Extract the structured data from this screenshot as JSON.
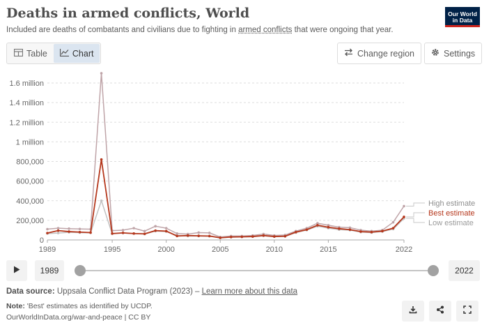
{
  "header": {
    "title": "Deaths in armed conflicts, World",
    "subtitle_before": "Included are deaths of combatants and civilians due to fighting in ",
    "subtitle_link": "armed conflicts",
    "subtitle_after": " that were ongoing that year.",
    "logo_line1": "Our World",
    "logo_line2": "in Data"
  },
  "toolbar": {
    "table_label": "Table",
    "chart_label": "Chart",
    "change_region_label": "Change region",
    "settings_label": "Settings"
  },
  "timeline": {
    "start_year": "1989",
    "end_year": "2022"
  },
  "footer": {
    "source_label": "Data source:",
    "source_text": " Uppsala Conflict Data Program (2023) – ",
    "source_link": "Learn more about this data",
    "note_label": "Note:",
    "note_text": " 'Best' estimates as identified by UCDP.",
    "url_text": "OurWorldInData.org/war-and-peace | CC BY"
  },
  "colors": {
    "high": "#bfa4a8",
    "best": "#b5371c",
    "low": "#c2c2c2",
    "grid": "#dddddd",
    "accent": "#002147"
  },
  "icons": [
    "table-icon",
    "chart-icon",
    "swap-arrows-icon",
    "gear-icon",
    "play-icon",
    "download-icon",
    "share-icon",
    "fullscreen-icon"
  ],
  "chart_data": {
    "type": "line",
    "title": "Deaths in armed conflicts, World",
    "x": [
      1989,
      1990,
      1991,
      1992,
      1993,
      1994,
      1995,
      1996,
      1997,
      1998,
      1999,
      2000,
      2001,
      2002,
      2003,
      2004,
      2005,
      2006,
      2007,
      2008,
      2009,
      2010,
      2011,
      2012,
      2013,
      2014,
      2015,
      2016,
      2017,
      2018,
      2019,
      2020,
      2021,
      2022
    ],
    "xticks": [
      "1989",
      "1995",
      "2000",
      "2005",
      "2010",
      "2015",
      "2022"
    ],
    "ylim": [
      0,
      1700000
    ],
    "yticks": [
      0,
      200000,
      400000,
      600000,
      800000,
      1000000,
      1200000,
      1400000,
      1600000
    ],
    "ytick_labels": [
      "0",
      "200,000",
      "400,000",
      "600,000",
      "800,000",
      "1 million",
      "1.2 million",
      "1.4 million",
      "1.6 million"
    ],
    "grid": true,
    "legend": "right-end-labels",
    "series": [
      {
        "name": "High estimate",
        "color": "#bfa4a8",
        "values": [
          110000,
          120000,
          115000,
          112000,
          110000,
          1700000,
          95000,
          100000,
          120000,
          90000,
          140000,
          120000,
          65000,
          60000,
          75000,
          72000,
          30000,
          40000,
          40000,
          45000,
          60000,
          45000,
          50000,
          90000,
          120000,
          170000,
          150000,
          130000,
          125000,
          100000,
          90000,
          100000,
          180000,
          345000
        ]
      },
      {
        "name": "Best estimate",
        "color": "#b5371c",
        "values": [
          70000,
          95000,
          85000,
          80000,
          75000,
          820000,
          65000,
          72000,
          65000,
          62000,
          95000,
          90000,
          40000,
          45000,
          42000,
          40000,
          22000,
          30000,
          32000,
          35000,
          45000,
          35000,
          38000,
          80000,
          105000,
          150000,
          130000,
          115000,
          105000,
          85000,
          80000,
          90000,
          120000,
          235000
        ]
      },
      {
        "name": "Low estimate",
        "color": "#c2c2c2",
        "values": [
          65000,
          70000,
          78000,
          75000,
          72000,
          400000,
          62000,
          70000,
          65000,
          60000,
          90000,
          85000,
          45000,
          40000,
          40000,
          38000,
          20000,
          28000,
          30000,
          33000,
          42000,
          33000,
          36000,
          75000,
          100000,
          140000,
          120000,
          105000,
          100000,
          80000,
          75000,
          85000,
          110000,
          220000
        ]
      }
    ]
  }
}
